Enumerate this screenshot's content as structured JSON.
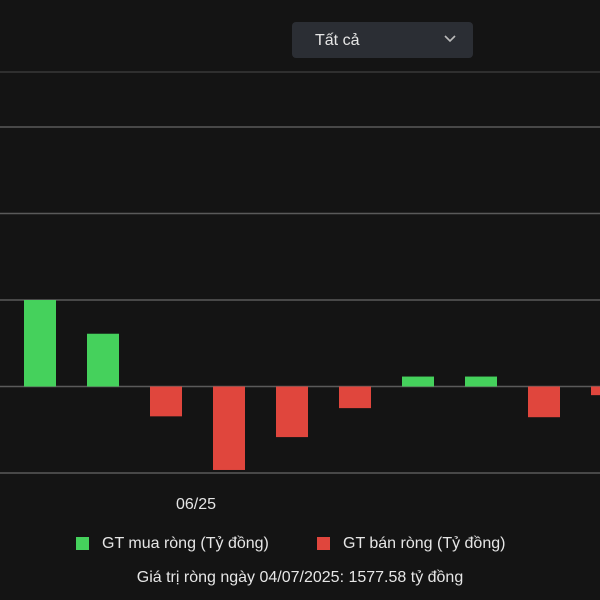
{
  "filter": "Tất cả",
  "chart_data": {
    "type": "bar",
    "categories": [
      null,
      null,
      "06/25",
      null,
      null,
      null,
      null,
      null,
      null,
      null
    ],
    "series": [
      {
        "name": "GT mua ròng (Tỷ đồng)",
        "color": "#45d15c",
        "values": [
          1000,
          610,
          null,
          null,
          null,
          null,
          115,
          115,
          null,
          null
        ]
      },
      {
        "name": "GT bán ròng (Tỷ đồng)",
        "color": "#e0463d",
        "values": [
          null,
          null,
          -345,
          -965,
          -585,
          -250,
          null,
          null,
          -355,
          -100
        ]
      }
    ],
    "ylim": [
      -1000,
      3000
    ],
    "yticks": [
      -1000,
      0,
      1000,
      2000,
      3000
    ],
    "grid": true,
    "caption": "Giá trị ròng ngày 04/07/2025: 1577.58 tỷ đồng"
  }
}
